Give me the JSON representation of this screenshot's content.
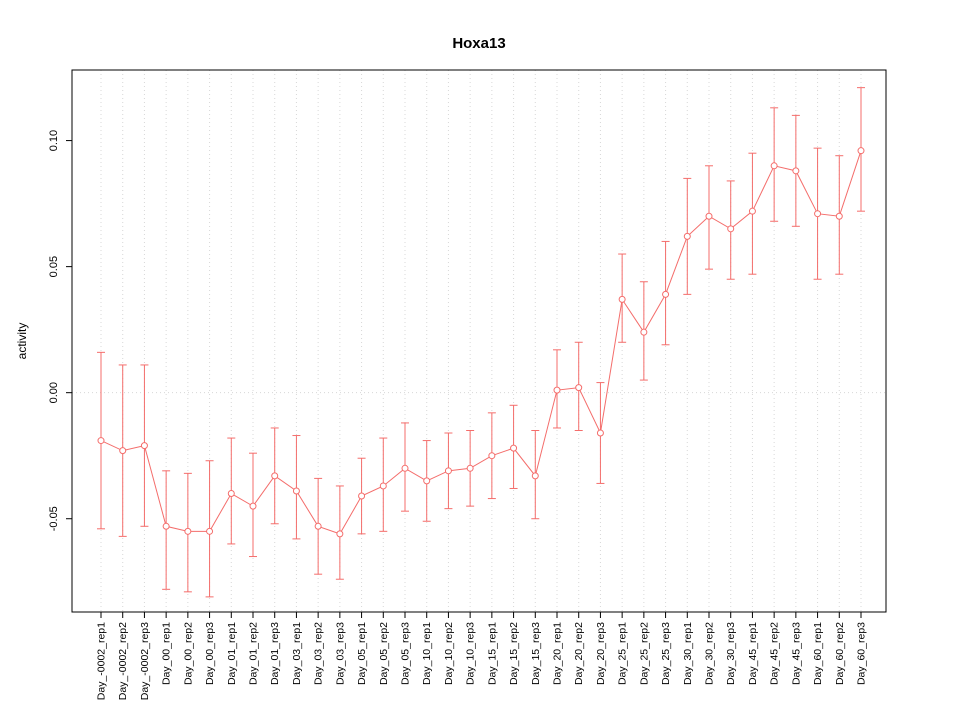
{
  "chart_data": {
    "type": "line",
    "title": "Hoxa13",
    "xlabel": "",
    "ylabel": "activity",
    "series_color": "#f46d6b",
    "point_fill": "#ffffff",
    "grid_color": "#d8d8d8",
    "axis_color": "#000000",
    "ylim": [
      -0.087,
      0.128
    ],
    "yticks": [
      -0.05,
      0.0,
      0.05,
      0.1
    ],
    "ytick_labels": [
      "-0.05",
      "0.00",
      "0.05",
      "0.10"
    ],
    "grid": {
      "vertical_per_category": true,
      "horizontal_at_zero": true
    },
    "legend": null,
    "categories": [
      "Day_-0002_rep1",
      "Day_-0002_rep2",
      "Day_-0002_rep3",
      "Day_00_rep1",
      "Day_00_rep2",
      "Day_00_rep3",
      "Day_01_rep1",
      "Day_01_rep2",
      "Day_01_rep3",
      "Day_03_rep1",
      "Day_03_rep2",
      "Day_03_rep3",
      "Day_05_rep1",
      "Day_05_rep2",
      "Day_05_rep3",
      "Day_10_rep1",
      "Day_10_rep2",
      "Day_10_rep3",
      "Day_15_rep1",
      "Day_15_rep2",
      "Day_15_rep3",
      "Day_20_rep1",
      "Day_20_rep2",
      "Day_20_rep3",
      "Day_25_rep1",
      "Day_25_rep2",
      "Day_25_rep3",
      "Day_30_rep1",
      "Day_30_rep2",
      "Day_30_rep3",
      "Day_45_rep1",
      "Day_45_rep2",
      "Day_45_rep3",
      "Day_60_rep1",
      "Day_60_rep2",
      "Day_60_rep3"
    ],
    "values": [
      -0.019,
      -0.023,
      -0.021,
      -0.053,
      -0.055,
      -0.055,
      -0.04,
      -0.045,
      -0.033,
      -0.039,
      -0.053,
      -0.056,
      -0.041,
      -0.037,
      -0.03,
      -0.035,
      -0.031,
      -0.03,
      -0.025,
      -0.022,
      -0.033,
      0.001,
      0.002,
      -0.016,
      0.037,
      0.024,
      0.039,
      0.062,
      0.07,
      0.065,
      0.072,
      0.09,
      0.088,
      0.071,
      0.07,
      0.096
    ],
    "upper": [
      0.016,
      0.011,
      0.011,
      -0.031,
      -0.032,
      -0.027,
      -0.018,
      -0.024,
      -0.014,
      -0.017,
      -0.034,
      -0.037,
      -0.026,
      -0.018,
      -0.012,
      -0.019,
      -0.016,
      -0.015,
      -0.008,
      -0.005,
      -0.015,
      0.017,
      0.02,
      0.004,
      0.055,
      0.044,
      0.06,
      0.085,
      0.09,
      0.084,
      0.095,
      0.113,
      0.11,
      0.097,
      0.094,
      0.121
    ],
    "lower": [
      -0.054,
      -0.057,
      -0.053,
      -0.078,
      -0.079,
      -0.081,
      -0.06,
      -0.065,
      -0.052,
      -0.058,
      -0.072,
      -0.074,
      -0.056,
      -0.055,
      -0.047,
      -0.051,
      -0.046,
      -0.045,
      -0.042,
      -0.038,
      -0.05,
      -0.014,
      -0.015,
      -0.036,
      0.02,
      0.005,
      0.019,
      0.039,
      0.049,
      0.045,
      0.047,
      0.068,
      0.066,
      0.045,
      0.047,
      0.072
    ]
  }
}
